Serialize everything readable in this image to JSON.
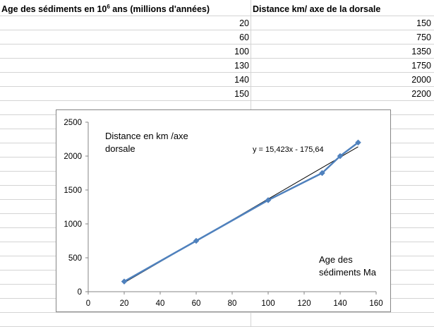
{
  "table": {
    "headers": {
      "col_a_prefix": "Age des sédiments en 10",
      "col_a_exponent": "6",
      "col_a_suffix": " ans (millions d'années)",
      "col_b": "Distance km/ axe de la dorsale"
    },
    "rows": [
      {
        "age": "20",
        "distance": "150"
      },
      {
        "age": "60",
        "distance": "750"
      },
      {
        "age": "100",
        "distance": "1350"
      },
      {
        "age": "130",
        "distance": "1750"
      },
      {
        "age": "140",
        "distance": "2000"
      },
      {
        "age": "150",
        "distance": "2200"
      }
    ]
  },
  "chart_data": {
    "type": "scatter",
    "title": "",
    "ylabel_annotation_line1": "Distance en km /axe",
    "ylabel_annotation_line2": "dorsale",
    "xlabel_annotation_line1": "Age des",
    "xlabel_annotation_line2": "sédiments Ma",
    "trendline_equation": "y = 15,423x - 175,64",
    "xlim": [
      0,
      160
    ],
    "ylim": [
      0,
      2500
    ],
    "x_ticks": [
      0,
      20,
      40,
      60,
      80,
      100,
      120,
      140,
      160
    ],
    "y_ticks": [
      0,
      500,
      1000,
      1500,
      2000,
      2500
    ],
    "series": [
      {
        "x": [
          20,
          60,
          100,
          130,
          140,
          150
        ],
        "y": [
          150,
          750,
          1350,
          1750,
          2000,
          2200
        ],
        "color": "#4f81bd",
        "style": "smoothed line with diamond markers"
      }
    ],
    "trendline": {
      "type": "linear",
      "slope": 15.423,
      "intercept": -175.64,
      "x_range": [
        20,
        150
      ],
      "color": "#000000"
    },
    "grid": false,
    "legend": "none"
  }
}
